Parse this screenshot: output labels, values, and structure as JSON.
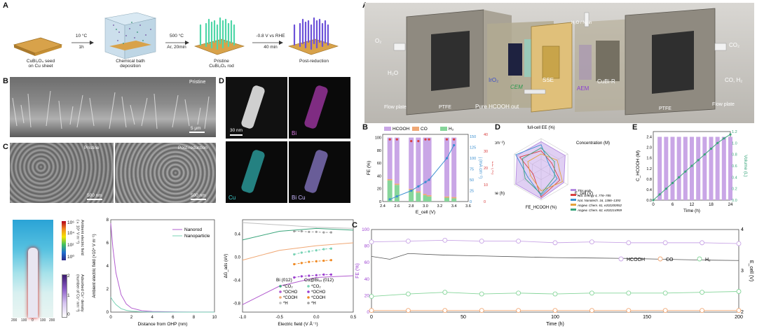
{
  "left": {
    "panelA": {
      "label": "A",
      "steps": [
        {
          "caption": "CuBi₂O₄ seed\non Cu sheet"
        },
        {
          "caption": "Chemical bath\ndeposition"
        },
        {
          "caption": "Pristine\nCuBi₂O₄ rod"
        },
        {
          "caption": "Post-reduction"
        }
      ],
      "arrows": [
        {
          "top": "10 °C",
          "bottom": "1h"
        },
        {
          "top": "500 °C",
          "bottom": "Ar, 20min"
        },
        {
          "top": "-0.8 V vs RHE",
          "bottom": "40 min"
        }
      ]
    },
    "panelB": {
      "label": "B",
      "tag": "Pristine",
      "scale": "5 μm"
    },
    "panelC": {
      "label": "C",
      "tags": [
        "Pristine",
        "Post-reduction"
      ],
      "scales": [
        "500 nm",
        "500 nm"
      ]
    },
    "panelD": {
      "label": "D",
      "tiles": [
        "",
        "Bi",
        "Cu",
        "Bi Cu"
      ],
      "scale": "30 nm"
    },
    "heatmap": {
      "cb1_ticks": [
        "10⁶",
        "10⁴",
        "10²",
        "10⁰"
      ],
      "cb1_label": "Ambient electric field\n(×10⁴ V m⁻¹)",
      "cb2_ticks": [
        "2",
        "1",
        "0"
      ],
      "cb2_label": "Adsorbed Cs⁺ density\n(number of Cs⁺ nm⁻²)",
      "x_ticks": [
        "200",
        "100",
        "0",
        "100",
        "200"
      ]
    },
    "efield_chart": {
      "ylabel": "Ambient electric field (×10⁴ V m⁻¹)",
      "xlabel": "Distance from OHP (nm)",
      "legend": [
        "Nanorod",
        "Nanoparticle"
      ]
    },
    "dg_chart": {
      "ylabel": "ΔG_ads (eV)",
      "xlabel": "Electric field (V Å⁻¹)",
      "legend_head": [
        "Bi (012)",
        "Cu@Bi₁ₓ (012)"
      ],
      "legend_rows": [
        "*CO₂",
        "*OCHO",
        "*COOH",
        "*H"
      ]
    }
  },
  "right": {
    "panelA": {
      "label": "A",
      "labels": [
        "O₂",
        "H₂O",
        "IrO₂",
        "CEM",
        "SSE",
        "AEM",
        "CuBi-R",
        "CO₂",
        "CO, H₂",
        "H₂O / N₂ in",
        "Flow plate",
        "PTFE",
        "Pure HCOOH out",
        "PTFE",
        "Flow plate"
      ]
    },
    "panelB": {
      "label": "B",
      "legend": [
        "HCOOH",
        "CO",
        "H₂"
      ],
      "ylabel": "FE (%)",
      "y2label": "j (mA cm⁻²)",
      "y3label": "EE (%)",
      "xlabel": "E_cell (V)"
    },
    "panelD": {
      "label": "D",
      "axes": [
        "full-cell EE (%)",
        "Concentration (M)",
        "E_cell (V)",
        "FE_HCOOH (%)",
        "Time (h)",
        "j (mA cm⁻²)"
      ],
      "legend": [
        "This work",
        "Nat. Energy 4, 776–785",
        "Nat. Nanotech. 16, 1386–1393",
        "Angew. Chem. 61, e202200552",
        "Angew. Chem. 62, e202214959"
      ]
    },
    "panelE": {
      "label": "E",
      "ylabel": "C_HCOOH (M)",
      "y2label": "Volume (L)",
      "xlabel": "Time (h)"
    },
    "panelC": {
      "label": "C",
      "legend": [
        "HCOOH",
        "CO",
        "H₂"
      ],
      "ylabel": "FE (%)",
      "y2label": "E_cell (V)",
      "xlabel": "Time (h)"
    }
  },
  "colors": {
    "hcooh": "#c9a6e6",
    "co": "#f0a875",
    "h2": "#86d59a",
    "j": "#3b8fd0",
    "ee": "#d94040",
    "nanorod": "#b25ccf",
    "nanoparticle": "#79d3b6"
  },
  "chart_data": [
    {
      "type": "line",
      "title": "",
      "xlabel": "Distance from OHP (nm)",
      "ylabel": "Ambient electric field (×10⁴ V m⁻¹)",
      "xlim": [
        0,
        10
      ],
      "ylim": [
        0,
        8
      ],
      "series": [
        {
          "name": "Nanorod",
          "x": [
            0,
            0.2,
            0.5,
            1,
            1.5,
            2,
            3,
            4,
            6,
            8,
            10
          ],
          "y": [
            7.7,
            5.6,
            3.4,
            1.5,
            0.7,
            0.35,
            0.12,
            0.05,
            0.02,
            0.01,
            0.01
          ]
        },
        {
          "name": "Nanoparticle",
          "x": [
            0,
            0.2,
            0.5,
            1,
            1.5,
            2,
            3,
            4,
            6,
            8,
            10
          ],
          "y": [
            1.3,
            1.0,
            0.65,
            0.3,
            0.15,
            0.08,
            0.03,
            0.01,
            0.0,
            0.0,
            0.0
          ]
        }
      ]
    },
    {
      "type": "line",
      "title": "",
      "xlabel": "Electric field (V Å⁻¹)",
      "ylabel": "ΔG_ads (eV)",
      "xlim": [
        -1.0,
        0.5
      ],
      "ylim": [
        -0.95,
        0.65
      ],
      "series": [
        {
          "name": "Bi (012) *CO₂",
          "x": [
            -1.0,
            -0.5,
            0.0,
            0.5
          ],
          "y": [
            0.3,
            0.45,
            0.5,
            0.47
          ]
        },
        {
          "name": "Bi (012) *OCHO",
          "x": [
            -1.0,
            -0.5,
            0.0,
            0.5
          ],
          "y": [
            -0.82,
            -0.5,
            -0.35,
            -0.32
          ]
        },
        {
          "name": "Bi (012) *COOH",
          "x": [
            -1.0,
            -0.5,
            0.0,
            0.5
          ],
          "y": [
            -0.05,
            0.12,
            0.2,
            0.25
          ]
        },
        {
          "name": "Bi (012) *H",
          "x": [
            -1.0,
            -0.5,
            0.0,
            0.5
          ],
          "y": [
            0.6,
            0.56,
            0.52,
            0.5
          ]
        },
        {
          "name": "Cu@Bi₁ₓ (012) *CO₂",
          "x": [
            -0.3,
            -0.2,
            -0.1,
            0.0,
            0.1,
            0.2
          ],
          "y": [
            0.05,
            0.08,
            0.1,
            0.12,
            0.14,
            0.15
          ]
        },
        {
          "name": "Cu@Bi₁ₓ (012) *OCHO",
          "x": [
            -0.3,
            -0.2,
            -0.1,
            0.0,
            0.1,
            0.2
          ],
          "y": [
            -0.35,
            -0.33,
            -0.32,
            -0.31,
            -0.3,
            -0.3
          ]
        },
        {
          "name": "Cu@Bi₁ₓ (012) *COOH",
          "x": [
            -0.3,
            -0.2,
            -0.1,
            0.0,
            0.1,
            0.2
          ],
          "y": [
            -0.12,
            -0.1,
            -0.08,
            -0.07,
            -0.06,
            -0.05
          ]
        },
        {
          "name": "Cu@Bi₁ₓ (012) *H",
          "x": [
            -0.3,
            -0.2,
            -0.1,
            0.0,
            0.1,
            0.2
          ],
          "y": [
            0.45,
            0.45,
            0.44,
            0.44,
            0.43,
            0.43
          ]
        }
      ]
    },
    {
      "type": "bar",
      "title": "",
      "xlabel": "E_cell (V)",
      "ylabel": "FE (%)",
      "categories": [
        "2.5",
        "2.6",
        "2.8",
        "2.9",
        "3.0",
        "3.05",
        "3.3",
        "3.4"
      ],
      "series": [
        {
          "name": "HCOOH",
          "values": [
            65,
            72,
            80,
            84,
            88,
            90,
            92,
            93
          ]
        },
        {
          "name": "CO",
          "values": [
            2,
            2,
            2,
            2,
            2,
            2,
            2,
            2
          ]
        },
        {
          "name": "H₂",
          "values": [
            33,
            26,
            18,
            14,
            10,
            8,
            6,
            5
          ]
        }
      ],
      "line_series": [
        {
          "name": "j",
          "axis": "y2",
          "x": [
            2.5,
            2.6,
            2.8,
            2.9,
            3.0,
            3.05,
            3.3,
            3.4
          ],
          "y": [
            5,
            12,
            25,
            35,
            45,
            50,
            100,
            130
          ]
        },
        {
          "name": "EE",
          "axis": "y3",
          "x": [
            2.5,
            2.6,
            2.8,
            2.9,
            3.0,
            3.05,
            3.3,
            3.4
          ],
          "y": [
            37,
            37,
            36,
            36,
            37,
            37,
            37,
            37
          ]
        }
      ],
      "ylim": [
        0,
        105
      ],
      "y2lim": [
        0,
        155
      ],
      "y3lim": [
        0,
        40
      ]
    },
    {
      "type": "line",
      "title": "",
      "xlabel": "Time (h)",
      "ylabel": "C_HCOOH (M)",
      "y2label": "Volume (L)",
      "xlim": [
        0,
        24
      ],
      "ylim": [
        0,
        2.6
      ],
      "y2lim": [
        0,
        1.2
      ],
      "bars_x": [
        2,
        4,
        6,
        8,
        10,
        12,
        14,
        16,
        18,
        20,
        22,
        24
      ],
      "bars_y": [
        2.4,
        2.4,
        2.4,
        2.4,
        2.4,
        2.4,
        2.4,
        2.4,
        2.4,
        2.4,
        2.4,
        2.4
      ],
      "volume_x": [
        0,
        2,
        4,
        6,
        8,
        10,
        12,
        14,
        16,
        18,
        20,
        22,
        24
      ],
      "volume_y": [
        0,
        0.1,
        0.2,
        0.3,
        0.4,
        0.5,
        0.6,
        0.7,
        0.8,
        0.9,
        1.0,
        1.08,
        1.15
      ]
    },
    {
      "type": "line",
      "title": "",
      "xlabel": "Time (h)",
      "ylabel": "FE (%)",
      "y2label": "E_cell (V)",
      "xlim": [
        0,
        200
      ],
      "ylim": [
        0,
        100
      ],
      "y2lim": [
        2,
        4
      ],
      "series": [
        {
          "name": "HCOOH",
          "x": [
            0,
            20,
            40,
            60,
            80,
            100,
            120,
            140,
            160,
            180,
            200
          ],
          "y": [
            85,
            86,
            87,
            86,
            86,
            84,
            85,
            84,
            84,
            84,
            83
          ]
        },
        {
          "name": "CO",
          "x": [
            0,
            20,
            40,
            60,
            80,
            100,
            120,
            140,
            160,
            180,
            200
          ],
          "y": [
            2,
            2,
            2,
            2,
            2,
            2,
            2,
            2,
            2,
            2,
            2
          ]
        },
        {
          "name": "H₂",
          "x": [
            0,
            20,
            40,
            60,
            80,
            100,
            120,
            140,
            160,
            180,
            200
          ],
          "y": [
            19,
            22,
            24,
            22,
            23,
            22,
            23,
            23,
            23,
            24,
            25
          ]
        },
        {
          "name": "E_cell",
          "axis": "y2",
          "x": [
            0,
            10,
            20,
            40,
            60,
            80,
            100,
            120,
            140,
            160,
            180,
            200
          ],
          "y": [
            3.35,
            3.28,
            3.42,
            3.38,
            3.36,
            3.34,
            3.32,
            3.31,
            3.3,
            3.28,
            3.26,
            3.25
          ]
        }
      ]
    }
  ]
}
